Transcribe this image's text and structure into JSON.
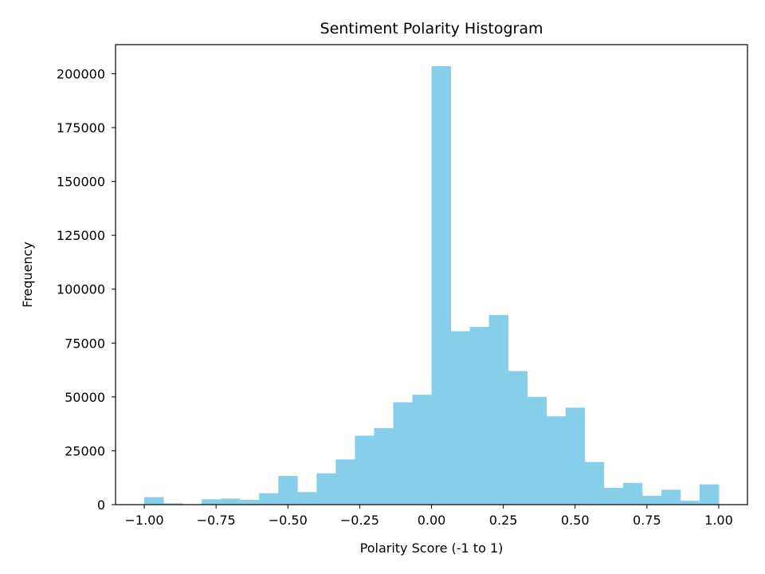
{
  "chart_data": {
    "type": "bar",
    "title": "Sentiment Polarity Histogram",
    "xlabel": "Polarity Score (-1 to 1)",
    "ylabel": "Frequency",
    "bar_color": "#87ceeb",
    "bin_edges": [
      -1.0,
      -0.9333,
      -0.8667,
      -0.8,
      -0.7333,
      -0.6667,
      -0.6,
      -0.5333,
      -0.4667,
      -0.4,
      -0.3333,
      -0.2667,
      -0.2,
      -0.1333,
      -0.0667,
      0.0,
      0.0667,
      0.1333,
      0.2,
      0.2667,
      0.3333,
      0.4,
      0.4667,
      0.5333,
      0.6,
      0.6667,
      0.7333,
      0.8,
      0.8667,
      0.9333,
      1.0
    ],
    "values": [
      3500,
      600,
      200,
      2500,
      2800,
      2200,
      5300,
      13300,
      5800,
      14500,
      21000,
      32000,
      35500,
      47500,
      51000,
      203500,
      80500,
      82500,
      88000,
      62000,
      50000,
      41000,
      45000,
      19800,
      7800,
      10100,
      4100,
      6900,
      1800,
      9400
    ],
    "xlim": [
      -1.1,
      1.1
    ],
    "ylim": [
      0,
      213500
    ],
    "xticks": [
      -1.0,
      -0.75,
      -0.5,
      -0.25,
      0.0,
      0.25,
      0.5,
      0.75,
      1.0
    ],
    "xtick_labels": [
      "−1.00",
      "−0.75",
      "−0.50",
      "−0.25",
      "0.00",
      "0.25",
      "0.50",
      "0.75",
      "1.00"
    ],
    "yticks": [
      0,
      25000,
      50000,
      75000,
      100000,
      125000,
      150000,
      175000,
      200000
    ],
    "ytick_labels": [
      "0",
      "25000",
      "50000",
      "75000",
      "100000",
      "125000",
      "150000",
      "175000",
      "200000"
    ],
    "grid": false,
    "legend": false
  }
}
